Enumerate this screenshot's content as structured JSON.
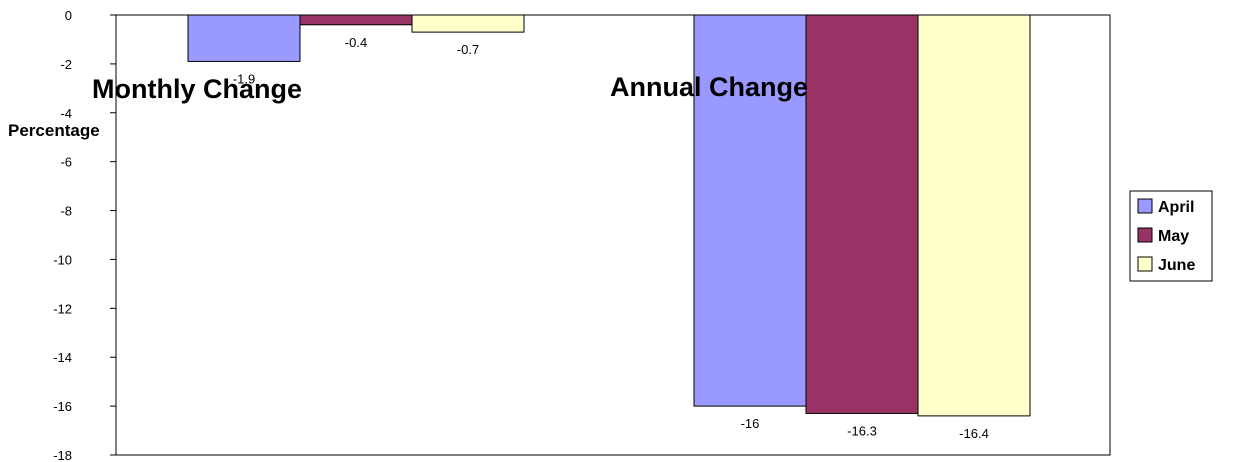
{
  "chart_data": {
    "type": "bar",
    "ylabel": "Percentage",
    "ylim": [
      -18,
      0
    ],
    "yticks": [
      0,
      -2,
      -4,
      -6,
      -8,
      -10,
      -12,
      -14,
      -16,
      -18
    ],
    "categories": [
      "Monthly Change",
      "Annual Change"
    ],
    "series": [
      {
        "name": "April",
        "color": "#9999ff",
        "values": [
          -1.9,
          -16
        ]
      },
      {
        "name": "May",
        "color": "#993366",
        "values": [
          -0.4,
          -16.3
        ]
      },
      {
        "name": "June",
        "color": "#ffffcc",
        "values": [
          -0.7,
          -16.4
        ]
      }
    ],
    "data_labels": [
      [
        "-1.9",
        "-16"
      ],
      [
        "-0.4",
        "-16.3"
      ],
      [
        "-0.7",
        "-16.4"
      ]
    ],
    "legend_position": "right",
    "grid": false
  }
}
